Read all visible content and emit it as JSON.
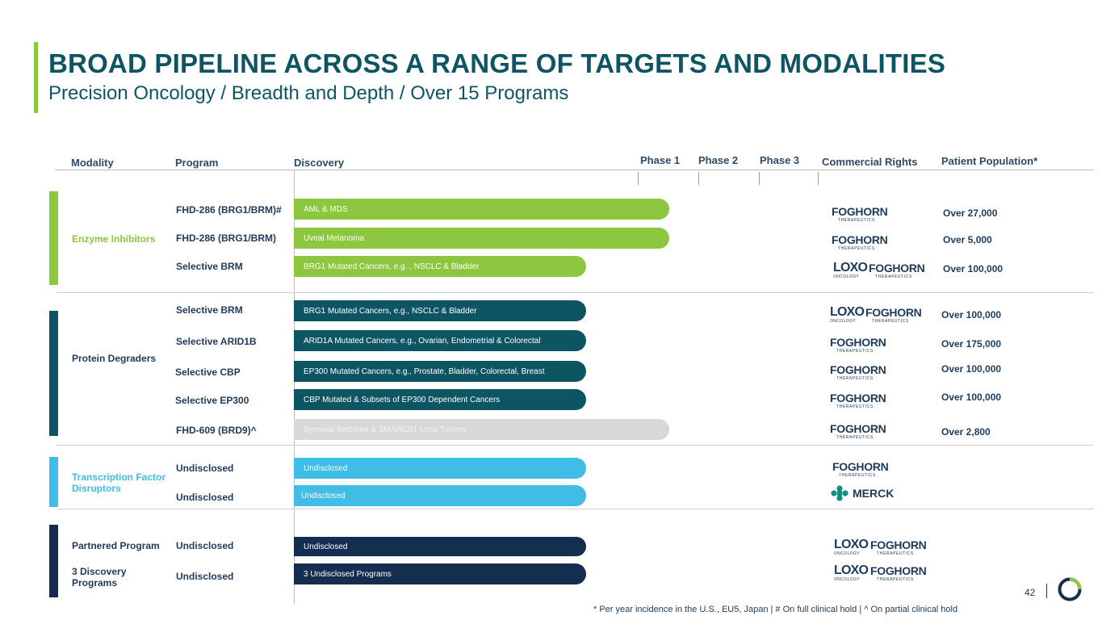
{
  "title": "BROAD PIPELINE ACROSS A RANGE OF TARGETS AND MODALITIES",
  "subtitle": "Precision Oncology / Breadth and Depth / Over 15 Programs",
  "headers": {
    "modality": "Modality",
    "program": "Program",
    "discovery": "Discovery",
    "phase1": "Phase 1",
    "phase2": "Phase 2",
    "phase3": "Phase 3",
    "rights": "Commercial Rights",
    "population": "Patient Population*"
  },
  "modalities": {
    "enzyme": "Enzyme Inhibitors",
    "degraders": "Protein Degraders",
    "tfd": "Transcription Factor Disruptors",
    "partnered": "Partnered Program",
    "discovery3": "3 Discovery Programs"
  },
  "colors": {
    "green": "#8dc63f",
    "teal": "#0e5563",
    "lightblue": "#3fbde6",
    "navy": "#152d4e",
    "grey": "#d8d8d8"
  },
  "rows": [
    {
      "program": "FHD-286 (BRG1/BRM)#",
      "indication": "AML & MDS",
      "population": "Over 27,000",
      "rights": "foghorn"
    },
    {
      "program": "FHD-286 (BRG1/BRM)",
      "indication": "Uveal Melanoma",
      "population": "Over 5,000",
      "rights": "foghorn"
    },
    {
      "program": "Selective BRM",
      "indication": "BRG1 Mutated Cancers, e.g. , NSCLC & Bladder",
      "population": "Over 100,000",
      "rights": "loxo-foghorn"
    },
    {
      "program": "Selective BRM",
      "indication": "BRG1 Mutated Cancers, e.g., NSCLC & Bladder",
      "population": "Over 100,000",
      "rights": "loxo-foghorn"
    },
    {
      "program": "Selective ARID1B",
      "indication": "ARID1A Mutated Cancers, e.g., Ovarian, Endometrial & Colorectal",
      "population": "Over 175,000",
      "rights": "foghorn"
    },
    {
      "program": "Selective CBP",
      "indication": "EP300 Mutated Cancers, e.g., Prostate, Bladder, Colorectal, Breast",
      "population": "Over 100,000",
      "rights": "foghorn"
    },
    {
      "program": "Selective EP300",
      "indication": "CBP Mutated & Subsets of EP300 Dependent Cancers",
      "population": "Over 100,000",
      "rights": "foghorn"
    },
    {
      "program": "FHD-609 (BRD9)^",
      "indication": "Synovial Sarcoma & SMARCB1-Loss Tumors",
      "population": "Over 2,800",
      "rights": "foghorn"
    },
    {
      "program": "Undisclosed",
      "indication": "Undisclosed",
      "population": "",
      "rights": "foghorn"
    },
    {
      "program": "Undisclosed",
      "indication": "Undisclosed",
      "population": "",
      "rights": "merck"
    },
    {
      "program": "Undisclosed",
      "indication": "Undisclosed",
      "population": "",
      "rights": "loxo-foghorn"
    },
    {
      "program": "Undisclosed",
      "indication": "3 Undisclosed Programs",
      "population": "",
      "rights": "loxo-foghorn"
    }
  ],
  "logos": {
    "foghorn": "FOGHORN",
    "foghorn_sub": "THERAPEUTICS",
    "loxo": "LOXO",
    "loxo_sub": "ONCOLOGY",
    "merck": "MERCK"
  },
  "footnote": "* Per year incidence in the U.S., EU5, Japan | # On full clinical hold | ^ On partial clinical hold",
  "page_number": "42"
}
